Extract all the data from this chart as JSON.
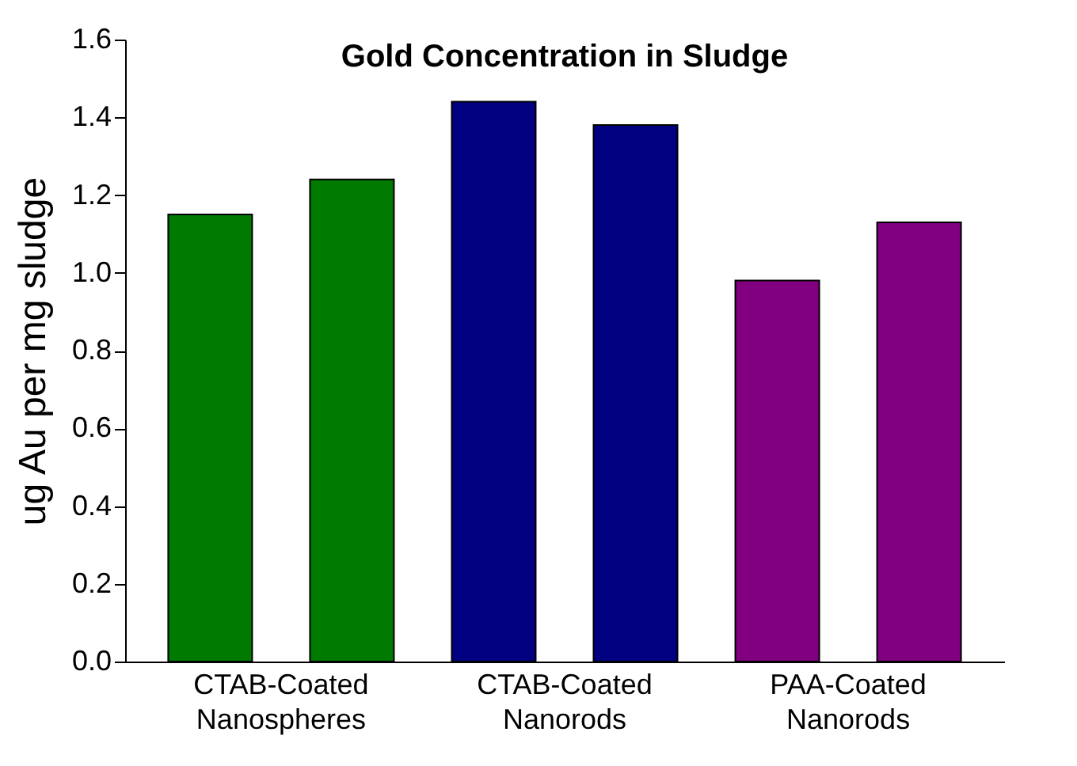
{
  "chart_data": {
    "type": "bar",
    "title": "Gold Concentration in Sludge",
    "ylabel": "ug Au per mg sludge",
    "categories": [
      "CTAB-Coated Nanospheres",
      "CTAB-Coated Nanorods",
      "PAA-Coated Nanorods"
    ],
    "series": [
      {
        "colors": [
          "#007a00",
          "#000080",
          "#800080"
        ],
        "values": [
          1.15,
          1.44,
          0.98
        ]
      },
      {
        "colors": [
          "#007a00",
          "#000080",
          "#800080"
        ],
        "values": [
          1.24,
          1.38,
          1.13
        ]
      }
    ],
    "ylim": [
      0,
      1.6
    ],
    "yticks": [
      {
        "value": 0,
        "label": "0.0"
      },
      {
        "value": 0.2,
        "label": "0.2"
      },
      {
        "value": 0.4,
        "label": "0.4"
      },
      {
        "value": 0.6,
        "label": "0.6"
      },
      {
        "value": 0.8,
        "label": "0.8"
      },
      {
        "value": 1.0,
        "label": "1.0"
      },
      {
        "value": 1.2,
        "label": "1.2"
      },
      {
        "value": 1.4,
        "label": "1.4"
      },
      {
        "value": 1.6,
        "label": "1.6"
      }
    ],
    "grid": false
  }
}
